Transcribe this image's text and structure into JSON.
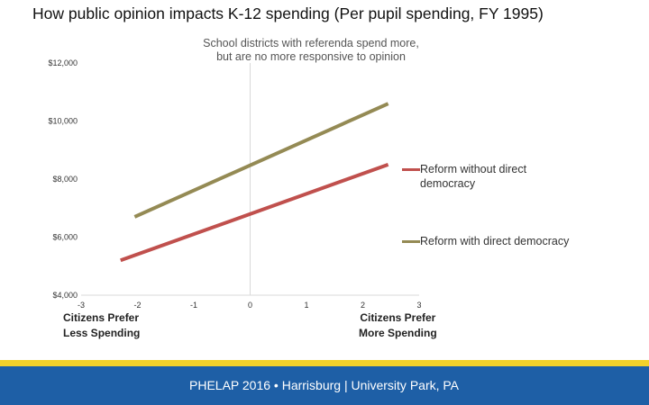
{
  "title": "How public opinion impacts K-12 spending (Per pupil spending, FY 1995)",
  "subtitle_lines": [
    "School districts with referenda spend more,",
    "but are no more responsive to opinion"
  ],
  "side_labels": {
    "left": [
      "Citizens Prefer",
      "Less Spending"
    ],
    "right": [
      "Citizens Prefer",
      "More Spending"
    ]
  },
  "footer_text": "PHELAP 2016 • Harrisburg | University Park, PA",
  "colors": {
    "series_without": "#C0504D",
    "series_with": "#948A54",
    "axis": "#D9D9D9",
    "footer_stripe": "#F2D12B",
    "footer_band": "#1E5FA6"
  },
  "chart_data": {
    "type": "line",
    "title": "",
    "xlabel": "",
    "ylabel": "",
    "xlim": [
      -3,
      3
    ],
    "ylim": [
      4000,
      12000
    ],
    "x_ticks": [
      "-3",
      "-2",
      "-1",
      "0",
      "1",
      "2",
      "3"
    ],
    "y_ticks": [
      "$4,000",
      "$6,000",
      "$8,000",
      "$10,000",
      "$12,000"
    ],
    "grid": false,
    "legend_position": "right",
    "series": [
      {
        "name": "Reform without direct democracy",
        "color": "#C0504D",
        "x": [
          -2.3,
          2.45
        ],
        "y": [
          5200,
          8500
        ]
      },
      {
        "name": "Reform with direct democracy",
        "color": "#948A54",
        "x": [
          -2.05,
          2.45
        ],
        "y": [
          6700,
          10600
        ]
      }
    ]
  }
}
